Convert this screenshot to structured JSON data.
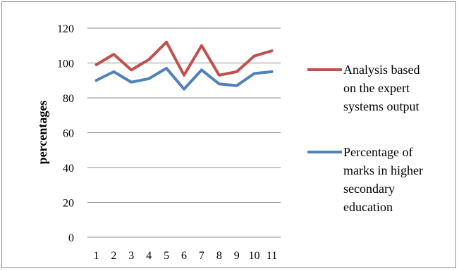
{
  "chart_data": {
    "type": "line",
    "title": "",
    "xlabel": "",
    "ylabel": "percentages",
    "categories": [
      "1",
      "2",
      "3",
      "4",
      "5",
      "6",
      "7",
      "8",
      "9",
      "10",
      "11"
    ],
    "ylim": [
      0,
      120
    ],
    "yticks": [
      0,
      20,
      40,
      60,
      80,
      100,
      120
    ],
    "grid": true,
    "legend_position": "right",
    "series": [
      {
        "name": "Analysis based on the expert systems output",
        "legend_lines": [
          "Analysis based",
          "on the expert",
          "systems output"
        ],
        "color": "#c0504d",
        "values": [
          99,
          105,
          96,
          102,
          112,
          93,
          110,
          93,
          95,
          104,
          107
        ]
      },
      {
        "name": "Percentage of marks in higher secondary education",
        "legend_lines": [
          "Percentage of",
          "marks in higher",
          "secondary",
          "education"
        ],
        "color": "#4f81bd",
        "values": [
          90,
          95,
          89,
          91,
          97,
          85,
          96,
          88,
          87,
          94,
          95
        ]
      }
    ]
  }
}
